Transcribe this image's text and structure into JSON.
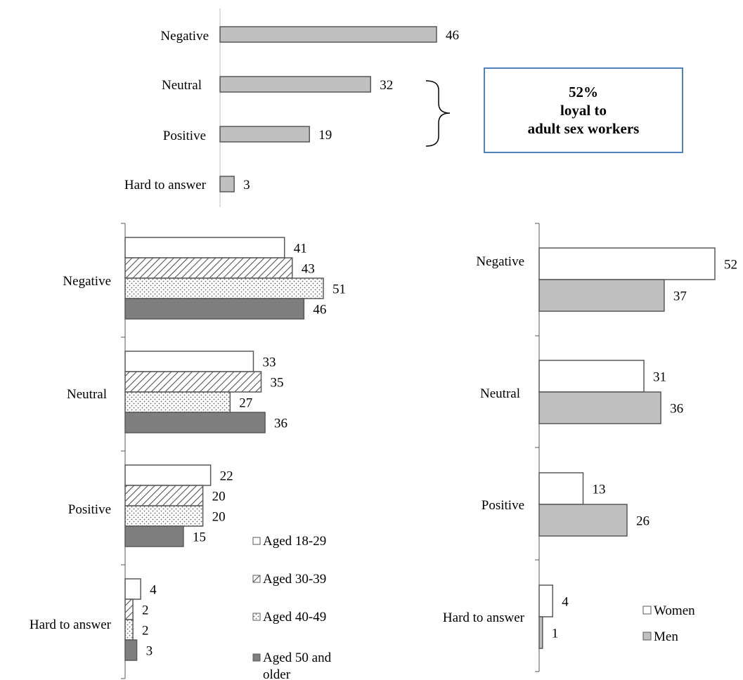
{
  "callout": {
    "lines": [
      "52%",
      "loyal to",
      "adult sex workers"
    ],
    "border_color": "#4f81bd"
  },
  "colors": {
    "gray_bar": "#c0c0c0",
    "dark_bar": "#7f7f7f",
    "white_bar": "#ffffff",
    "outline": "#595959",
    "axis": "#bfbfbf"
  },
  "chart_data": [
    {
      "type": "bar",
      "orientation": "horizontal",
      "categories": [
        "Negative",
        "Neutral",
        "Positive",
        "Hard to answer"
      ],
      "series": [
        {
          "values": [
            46,
            32,
            19,
            3
          ],
          "fill": "gray",
          "color": "#c0c0c0"
        }
      ],
      "data_labels": true,
      "annotation": "52% loyal to adult sex workers",
      "grid": false
    },
    {
      "type": "bar",
      "orientation": "horizontal",
      "categories": [
        "Negative",
        "Neutral",
        "Positive",
        "Hard to answer"
      ],
      "series": [
        {
          "name": "Aged 18-29",
          "values": [
            41,
            33,
            22,
            4
          ],
          "fill": "white",
          "color": "#ffffff"
        },
        {
          "name": "Aged 30-39",
          "values": [
            43,
            35,
            20,
            2
          ],
          "fill": "hatch",
          "color": "#ffffff"
        },
        {
          "name": "Aged 40-49",
          "values": [
            51,
            27,
            20,
            2
          ],
          "fill": "dots",
          "color": "#ffffff"
        },
        {
          "name": "Aged 50 and older",
          "values": [
            46,
            36,
            15,
            3
          ],
          "fill": "dark",
          "color": "#7f7f7f"
        }
      ],
      "data_labels": true,
      "legend": "bottom-right",
      "grid": false
    },
    {
      "type": "bar",
      "orientation": "horizontal",
      "categories": [
        "Negative",
        "Neutral",
        "Positive",
        "Hard to answer"
      ],
      "series": [
        {
          "name": "Women",
          "values": [
            52,
            31,
            13,
            4
          ],
          "fill": "white",
          "color": "#ffffff"
        },
        {
          "name": "Men",
          "values": [
            37,
            36,
            26,
            1
          ],
          "fill": "gray",
          "color": "#c0c0c0"
        }
      ],
      "data_labels": true,
      "legend": "bottom-right",
      "grid": false
    }
  ]
}
